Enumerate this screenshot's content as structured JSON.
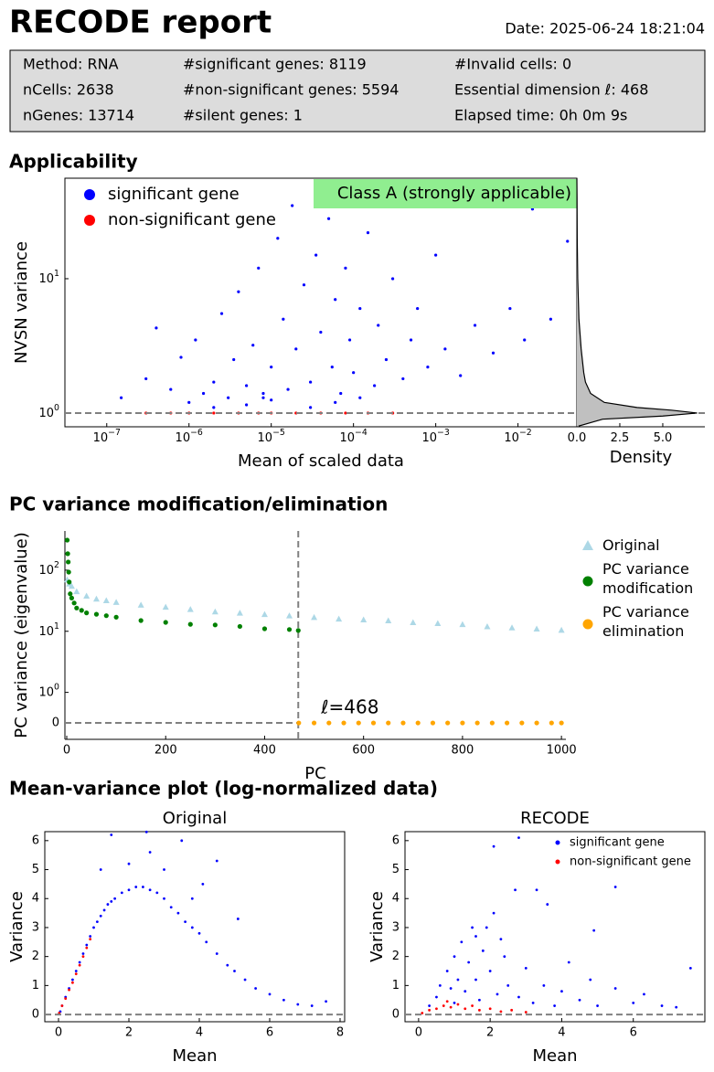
{
  "header": {
    "title": "RECODE report",
    "date": "Date: 2025-06-24 18:21:04"
  },
  "info": [
    [
      "Method: RNA",
      "#significant genes: 8119",
      "#Invalid cells: 0"
    ],
    [
      "nCells: 2638",
      "#non-significant genes: 5594",
      "Essential dimension ℓ: 468"
    ],
    [
      "nGenes: 13714",
      "#silent genes: 1",
      "Elapsed time: 0h 0m 9s"
    ]
  ],
  "sections": [
    "Applicability",
    "PC variance modification/elimination",
    "Mean-variance plot (log-normalized data)"
  ],
  "chart_data": [
    {
      "type": "scatter",
      "xlabel": "Mean of scaled data",
      "ylabel": "NVSN variance",
      "xscale": "log",
      "yscale": "log",
      "xlim": [
        3.1e-08,
        0.052
      ],
      "ylim": [
        0.79,
        56
      ],
      "xticks": [
        {
          "value": 1e-07,
          "label": "10",
          "sup": "−7"
        },
        {
          "value": 1e-06,
          "label": "10",
          "sup": "−6"
        },
        {
          "value": 1e-05,
          "label": "10",
          "sup": "−5"
        },
        {
          "value": 0.0001,
          "label": "10",
          "sup": "−4"
        },
        {
          "value": 0.001,
          "label": "10",
          "sup": "−3"
        },
        {
          "value": 0.01,
          "label": "10",
          "sup": "−2"
        }
      ],
      "yticks": [
        {
          "value": 1,
          "label": "10",
          "sup": "0"
        },
        {
          "value": 10,
          "label": "10",
          "sup": "1"
        }
      ],
      "reference_line": 1,
      "annotation": "Class A (strongly applicable)",
      "annotation_color": "#90ee90",
      "legend": "upper left",
      "series": [
        {
          "name": "significant gene",
          "color": "#0000ff",
          "x": [
            1.5e-07,
            3e-07,
            4e-07,
            6e-07,
            8e-07,
            1e-06,
            1.2e-06,
            1.5e-06,
            2e-06,
            2.5e-06,
            3e-06,
            3.5e-06,
            4e-06,
            5e-06,
            6e-06,
            7e-06,
            8e-06,
            1e-05,
            1.2e-05,
            1.4e-05,
            1.6e-05,
            1.8e-05,
            2e-05,
            2.5e-05,
            3e-05,
            3.5e-05,
            4e-05,
            5e-05,
            5.5e-05,
            6e-05,
            7e-05,
            8e-05,
            9e-05,
            0.0001,
            0.00012,
            0.00015,
            0.00018,
            0.0002,
            0.00025,
            0.0003,
            0.0004,
            0.0005,
            0.0006,
            0.0008,
            0.001,
            0.0013,
            0.002,
            0.003,
            0.005,
            0.008,
            0.012,
            0.015,
            0.025,
            0.04,
            5e-06,
            1e-05,
            3e-05,
            6e-05,
            0.00012,
            2e-06,
            8e-06
          ],
          "values": [
            1.3,
            1.8,
            4.3,
            1.5,
            2.6,
            1.2,
            3.5,
            1.4,
            1.7,
            5.5,
            1.3,
            2.5,
            8,
            1.6,
            3.2,
            12,
            1.4,
            2.2,
            20,
            5,
            1.5,
            35,
            3,
            9,
            1.7,
            15,
            4,
            28,
            2.2,
            7,
            1.4,
            12,
            3.5,
            2,
            6,
            22,
            1.6,
            4.5,
            2.5,
            10,
            1.8,
            3.5,
            6,
            2.2,
            15,
            3,
            1.9,
            4.5,
            2.8,
            6,
            3.5,
            33,
            5,
            19,
            1.15,
            1.25,
            1.1,
            1.2,
            1.3,
            1.1,
            1.3
          ]
        },
        {
          "name": "non-significant gene",
          "color": "#ff0000",
          "x": [
            3e-07,
            6e-07,
            1e-06,
            2e-06,
            4e-06,
            7e-06,
            1e-05,
            2e-05,
            4e-05,
            8e-05,
            0.00015,
            0.0003
          ],
          "values": [
            1,
            1,
            1,
            1,
            1,
            1,
            1,
            1,
            1,
            1,
            1,
            1
          ]
        }
      ]
    },
    {
      "type": "density",
      "xlabel": "Density",
      "yscale": "log",
      "xlim": [
        0,
        7.45
      ],
      "ylim": [
        0.79,
        56
      ],
      "xticks": [
        {
          "value": 0,
          "label": "0.0"
        },
        {
          "value": 2.5,
          "label": "2.5"
        },
        {
          "value": 5,
          "label": "5.0"
        }
      ],
      "color": "#c0c0c0",
      "y": [
        0.8,
        0.9,
        0.95,
        1.0,
        1.05,
        1.1,
        1.2,
        1.4,
        1.7,
        2,
        3,
        5,
        10,
        20,
        40,
        56
      ],
      "values": [
        0.1,
        1.5,
        5,
        7,
        5.5,
        3.5,
        1.6,
        0.8,
        0.5,
        0.4,
        0.25,
        0.12,
        0.05,
        0.02,
        0.01,
        0
      ]
    },
    {
      "type": "pc",
      "xlabel": "PC",
      "ylabel": "PC variance (eigenvalue)",
      "yscale": "symlog",
      "linthresh": 1,
      "xlim": [
        -3.7,
        1009
      ],
      "ylim": [
        -0.537,
        438
      ],
      "xticks": [
        0,
        200,
        400,
        600,
        800,
        1000
      ],
      "yticks": [
        0,
        {
          "value": 1,
          "label": "10",
          "sup": "0"
        },
        {
          "value": 10,
          "label": "10",
          "sup": "1"
        },
        {
          "value": 100,
          "label": "10",
          "sup": "2"
        }
      ],
      "ell": 468,
      "reference_line": 0,
      "annotation": "ℓ=468",
      "legend": "right",
      "series": [
        {
          "name": "Original",
          "color": "#add8e6",
          "marker": "triangle",
          "x": [
            1,
            5,
            10,
            20,
            40,
            60,
            80,
            100,
            150,
            200,
            250,
            300,
            350,
            400,
            450,
            500,
            550,
            600,
            650,
            700,
            750,
            800,
            850,
            900,
            950,
            1000
          ],
          "values": [
            70,
            60,
            55,
            45,
            38,
            34,
            32,
            30,
            27,
            25,
            23,
            21,
            20,
            19,
            18,
            17,
            16,
            15.5,
            15,
            14,
            13.5,
            13,
            12,
            11.5,
            11,
            10.5
          ]
        },
        {
          "name": "PC variance\nmodification",
          "color": "#008000",
          "marker": "circle",
          "x": [
            1,
            2,
            3,
            4,
            5,
            7,
            10,
            15,
            20,
            30,
            40,
            60,
            80,
            100,
            150,
            200,
            250,
            300,
            350,
            400,
            450,
            468
          ],
          "values": [
            310,
            186,
            136,
            93,
            64,
            41,
            35,
            29,
            24,
            22,
            20,
            19,
            18,
            17,
            15,
            14,
            13,
            12.7,
            12,
            11,
            10.7,
            10.3
          ]
        },
        {
          "name": "PC variance\nelimination",
          "color": "#ffa500",
          "marker": "circle",
          "x": [
            469,
            500,
            530,
            560,
            590,
            620,
            650,
            680,
            710,
            740,
            770,
            800,
            830,
            860,
            890,
            920,
            950,
            980,
            1000
          ],
          "values": [
            0,
            0,
            0,
            0,
            0,
            0,
            0,
            0,
            0,
            0,
            0,
            0,
            0,
            0,
            0,
            0,
            0,
            0,
            0
          ]
        }
      ]
    },
    {
      "type": "scatter",
      "title": "Original",
      "xlabel": "Mean",
      "ylabel": "Variance",
      "xlim": [
        -0.39,
        8.13
      ],
      "ylim": [
        -0.25,
        6.31
      ],
      "xticks": [
        0,
        2,
        4,
        6,
        8
      ],
      "yticks": [
        0,
        1,
        2,
        3,
        4,
        5,
        6
      ],
      "reference_line": 0,
      "series": [
        {
          "color": "#0000ff",
          "x": [
            0.05,
            0.1,
            0.2,
            0.3,
            0.4,
            0.5,
            0.6,
            0.7,
            0.8,
            0.9,
            1.0,
            1.1,
            1.2,
            1.3,
            1.4,
            1.5,
            1.6,
            1.8,
            2.0,
            2.2,
            2.4,
            2.6,
            2.8,
            3.0,
            3.2,
            3.4,
            3.6,
            3.8,
            4.0,
            4.2,
            4.5,
            4.8,
            5.0,
            5.3,
            5.6,
            6.0,
            6.4,
            6.8,
            7.2,
            7.6,
            1.5,
            2.5,
            2.6,
            3.5,
            4.5,
            2.0,
            3.0,
            1.2,
            4.1,
            5.1,
            3.8
          ],
          "values": [
            0.1,
            0.3,
            0.6,
            0.9,
            1.2,
            1.5,
            1.8,
            2.1,
            2.4,
            2.7,
            3.0,
            3.2,
            3.4,
            3.6,
            3.8,
            3.9,
            4.0,
            4.2,
            4.3,
            4.4,
            4.4,
            4.3,
            4.2,
            4.0,
            3.7,
            3.5,
            3.2,
            3.0,
            2.8,
            2.5,
            2.1,
            1.7,
            1.5,
            1.2,
            0.9,
            0.7,
            0.5,
            0.35,
            0.3,
            0.45,
            6.2,
            6.3,
            5.6,
            6.0,
            5.3,
            5.2,
            5.0,
            5.0,
            4.5,
            3.3,
            4.0
          ]
        },
        {
          "color": "#ff0000",
          "x": [
            0.02,
            0.1,
            0.2,
            0.3,
            0.4,
            0.5,
            0.6,
            0.7,
            0.8,
            0.9
          ],
          "values": [
            0.05,
            0.3,
            0.55,
            0.85,
            1.1,
            1.4,
            1.7,
            2.0,
            2.3,
            2.6
          ]
        }
      ]
    },
    {
      "type": "scatter",
      "title": "RECODE",
      "xlabel": "Mean",
      "ylabel": "Variance",
      "xlim": [
        -0.38,
        8.0
      ],
      "ylim": [
        -0.25,
        6.31
      ],
      "xticks": [
        0,
        2,
        4,
        6
      ],
      "yticks": [
        0,
        1,
        2,
        3,
        4,
        5,
        6
      ],
      "reference_line": 0,
      "legend": "upper right",
      "series": [
        {
          "name": "significant gene",
          "color": "#0000ff",
          "x": [
            0.3,
            0.5,
            0.6,
            0.8,
            1.0,
            1.1,
            1.2,
            1.3,
            1.4,
            1.5,
            1.6,
            1.7,
            1.8,
            2.0,
            2.1,
            2.2,
            2.4,
            2.5,
            2.7,
            2.8,
            3.0,
            3.2,
            3.3,
            3.5,
            3.8,
            4.0,
            4.2,
            4.5,
            4.8,
            5.0,
            5.5,
            5.5,
            6.0,
            6.3,
            6.8,
            7.2,
            7.6,
            2.1,
            2.8,
            1.9,
            0.9,
            1.0,
            1.6,
            2.3,
            3.6,
            4.9
          ],
          "values": [
            0.3,
            0.6,
            1.0,
            1.5,
            2.0,
            1.2,
            2.5,
            0.8,
            1.8,
            3.0,
            1.2,
            0.5,
            2.2,
            1.5,
            3.5,
            0.7,
            2.0,
            1.0,
            4.3,
            0.6,
            1.6,
            0.4,
            4.3,
            1.0,
            0.3,
            0.8,
            1.8,
            0.5,
            1.2,
            0.3,
            0.9,
            4.4,
            0.4,
            0.7,
            0.3,
            0.25,
            1.6,
            5.8,
            6.1,
            3.0,
            0.9,
            0.4,
            2.7,
            2.6,
            3.8,
            2.9
          ]
        },
        {
          "name": "non-significant gene",
          "color": "#ff0000",
          "x": [
            0.1,
            0.3,
            0.5,
            0.7,
            0.9,
            1.1,
            1.3,
            1.5,
            1.7,
            2.0,
            2.3,
            2.6,
            3.0,
            0.8
          ],
          "values": [
            0.05,
            0.15,
            0.2,
            0.3,
            0.25,
            0.35,
            0.2,
            0.3,
            0.15,
            0.2,
            0.1,
            0.15,
            0.08,
            0.45
          ]
        }
      ]
    }
  ]
}
